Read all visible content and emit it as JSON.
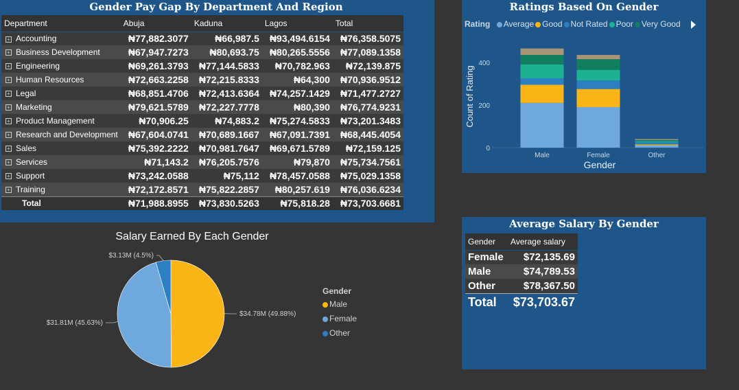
{
  "paygap": {
    "title": "Gender Pay Gap By Department And Region",
    "headers": [
      "Department",
      "Abuja",
      "Kaduna",
      "Lagos",
      "Total"
    ],
    "rows": [
      {
        "dept": "Accounting",
        "v": [
          "₦77,882.3077",
          "₦66,987.5",
          "₦93,494.6154",
          "₦76,358.5075"
        ]
      },
      {
        "dept": "Business Development",
        "v": [
          "₦67,947.7273",
          "₦80,693.75",
          "₦80,265.5556",
          "₦77,089.1358"
        ]
      },
      {
        "dept": "Engineering",
        "v": [
          "₦69,261.3793",
          "₦77,144.5833",
          "₦70,782.963",
          "₦72,139.875"
        ]
      },
      {
        "dept": "Human Resources",
        "v": [
          "₦72,663.2258",
          "₦72,215.8333",
          "₦64,300",
          "₦70,936.9512"
        ]
      },
      {
        "dept": "Legal",
        "v": [
          "₦68,851.4706",
          "₦72,413.6364",
          "₦74,257.1429",
          "₦71,477.2727"
        ]
      },
      {
        "dept": "Marketing",
        "v": [
          "₦79,621.5789",
          "₦72,227.7778",
          "₦80,390",
          "₦76,774.9231"
        ]
      },
      {
        "dept": "Product Management",
        "v": [
          "₦70,906.25",
          "₦74,883.2",
          "₦75,274.5833",
          "₦73,201.3483"
        ]
      },
      {
        "dept": "Research and Development",
        "v": [
          "₦67,604.0741",
          "₦70,689.1667",
          "₦67,091.7391",
          "₦68,445.4054"
        ]
      },
      {
        "dept": "Sales",
        "v": [
          "₦75,392.2222",
          "₦70,981.7647",
          "₦69,671.5789",
          "₦72,159.125"
        ]
      },
      {
        "dept": "Services",
        "v": [
          "₦71,143.2",
          "₦76,205.7576",
          "₦79,870",
          "₦75,734.7561"
        ]
      },
      {
        "dept": "Support",
        "v": [
          "₦73,242.0588",
          "₦75,112",
          "₦78,457.0588",
          "₦75,029.1358"
        ]
      },
      {
        "dept": "Training",
        "v": [
          "₦72,172.8571",
          "₦75,822.2857",
          "₦80,257.619",
          "₦76,036.6234"
        ]
      }
    ],
    "total_row": {
      "label": "Total",
      "v": [
        "₦71,988.8955",
        "₦73,830.5263",
        "₦75,818.28",
        "₦73,703.6681"
      ]
    }
  },
  "ratings": {
    "title": "Ratings Based On Gender",
    "legend_title": "Rating",
    "legend": [
      {
        "name": "Average",
        "color": "#6fa8dc"
      },
      {
        "name": "Good",
        "color": "#fbb516"
      },
      {
        "name": "Not Rated",
        "color": "#2d7fc4"
      },
      {
        "name": "Poor",
        "color": "#1bb191"
      },
      {
        "name": "Very Good",
        "color": "#117e5f"
      }
    ]
  },
  "pie": {
    "title": "Salary Earned By Each Gender",
    "legend_title": "Gender",
    "legend": [
      {
        "name": "Male",
        "color": "#fbb516"
      },
      {
        "name": "Female",
        "color": "#6fa8dc"
      },
      {
        "name": "Other",
        "color": "#2d7fc4"
      }
    ]
  },
  "avg_salary": {
    "title": "Average Salary By Gender",
    "headers": [
      "Gender",
      "Average salary"
    ],
    "rows": [
      {
        "gender": "Female",
        "value": "$72,135.69"
      },
      {
        "gender": "Male",
        "value": "$74,789.53"
      },
      {
        "gender": "Other",
        "value": "$78,367.50"
      }
    ],
    "total_label": "Total",
    "total_value": "$73,703.67"
  },
  "chart_data": [
    {
      "type": "table",
      "title": "Gender Pay Gap By Department And Region",
      "columns": [
        "Department",
        "Abuja",
        "Kaduna",
        "Lagos",
        "Total"
      ]
    },
    {
      "type": "bar",
      "stacked": true,
      "title": "Ratings Based On Gender",
      "xlabel": "Gender",
      "ylabel": "Count of Rating",
      "categories": [
        "Male",
        "Female",
        "Other"
      ],
      "yticks": [
        0,
        200,
        400
      ],
      "ylim": [
        0,
        480
      ],
      "series": [
        {
          "name": "Average",
          "color": "#6fa8dc",
          "values": [
            210,
            190,
            10
          ]
        },
        {
          "name": "Good",
          "color": "#fbb516",
          "values": [
            85,
            85,
            5
          ]
        },
        {
          "name": "Not Rated",
          "color": "#2d7fc4",
          "values": [
            30,
            40,
            10
          ]
        },
        {
          "name": "Poor",
          "color": "#1bb191",
          "values": [
            65,
            50,
            5
          ]
        },
        {
          "name": "Very Good",
          "color": "#117e5f",
          "values": [
            45,
            50,
            5
          ]
        },
        {
          "name": "",
          "color": "#a89577",
          "values": [
            30,
            20,
            5
          ]
        }
      ]
    },
    {
      "type": "pie",
      "title": "Salary Earned By Each Gender",
      "slices": [
        {
          "name": "Male",
          "value": 34.78,
          "percent": 49.88,
          "label": "$34.78M (49.88%)",
          "color": "#fbb516"
        },
        {
          "name": "Female",
          "value": 31.81,
          "percent": 45.63,
          "label": "$31.81M (45.63%)",
          "color": "#6fa8dc"
        },
        {
          "name": "Other",
          "value": 3.13,
          "percent": 4.5,
          "label": "$3.13M (4.5%)",
          "color": "#2d7fc4"
        }
      ]
    }
  ]
}
